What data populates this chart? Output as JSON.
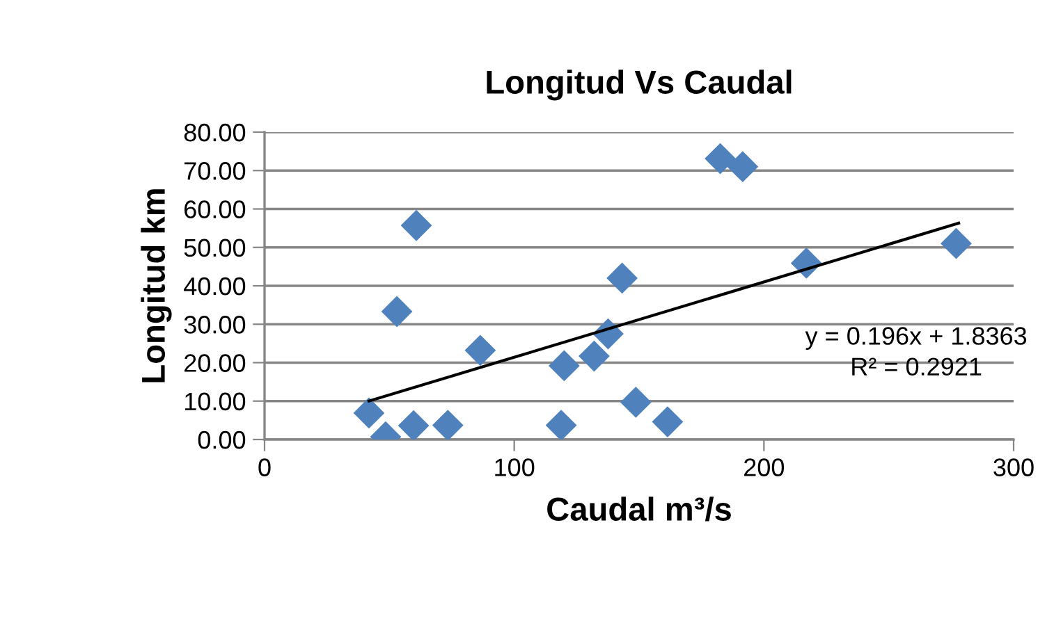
{
  "chart_data": {
    "type": "scatter",
    "title": "Longitud Vs Caudal",
    "xlabel": "Caudal m³/s",
    "ylabel": "Longitud km",
    "xlim": [
      0,
      300
    ],
    "xticks": [
      0,
      100,
      200,
      300
    ],
    "ylim": [
      0,
      80
    ],
    "yticks": [
      {
        "value": 0,
        "label": "0.00"
      },
      {
        "value": 10,
        "label": "10.00"
      },
      {
        "value": 20,
        "label": "20.00"
      },
      {
        "value": 30,
        "label": "30.00"
      },
      {
        "value": 40,
        "label": "40.00"
      },
      {
        "value": 50,
        "label": "50.00"
      },
      {
        "value": 60,
        "label": "60.00"
      },
      {
        "value": 70,
        "label": "70.00"
      },
      {
        "value": 80,
        "label": "80.00"
      }
    ],
    "grid": "y",
    "legend": false,
    "series": [
      {
        "color": "#4f81bd",
        "marker": "diamond",
        "x": [
          41.8,
          48.5,
          59.7,
          60.8,
          53,
          73.4,
          86.4,
          118.8,
          120,
          132,
          137.6,
          143.2,
          148.7,
          161.4,
          182.5,
          191.5,
          217,
          277
        ],
        "values": [
          6.9,
          0.7,
          3.6,
          55.7,
          33.3,
          3.7,
          23.2,
          3.7,
          19.2,
          21.7,
          27.5,
          42,
          9.7,
          4.6,
          73.1,
          71,
          45.9,
          51
        ]
      },
      {
        "type": "line",
        "color": "#000000",
        "marker": "none",
        "line_style": "solid",
        "x": [
          41.8,
          278
        ],
        "values": [
          10.0,
          56.3
        ]
      }
    ],
    "annotations": [
      "y = 0.196x + 1.8363\nR² = 0.2921"
    ]
  }
}
